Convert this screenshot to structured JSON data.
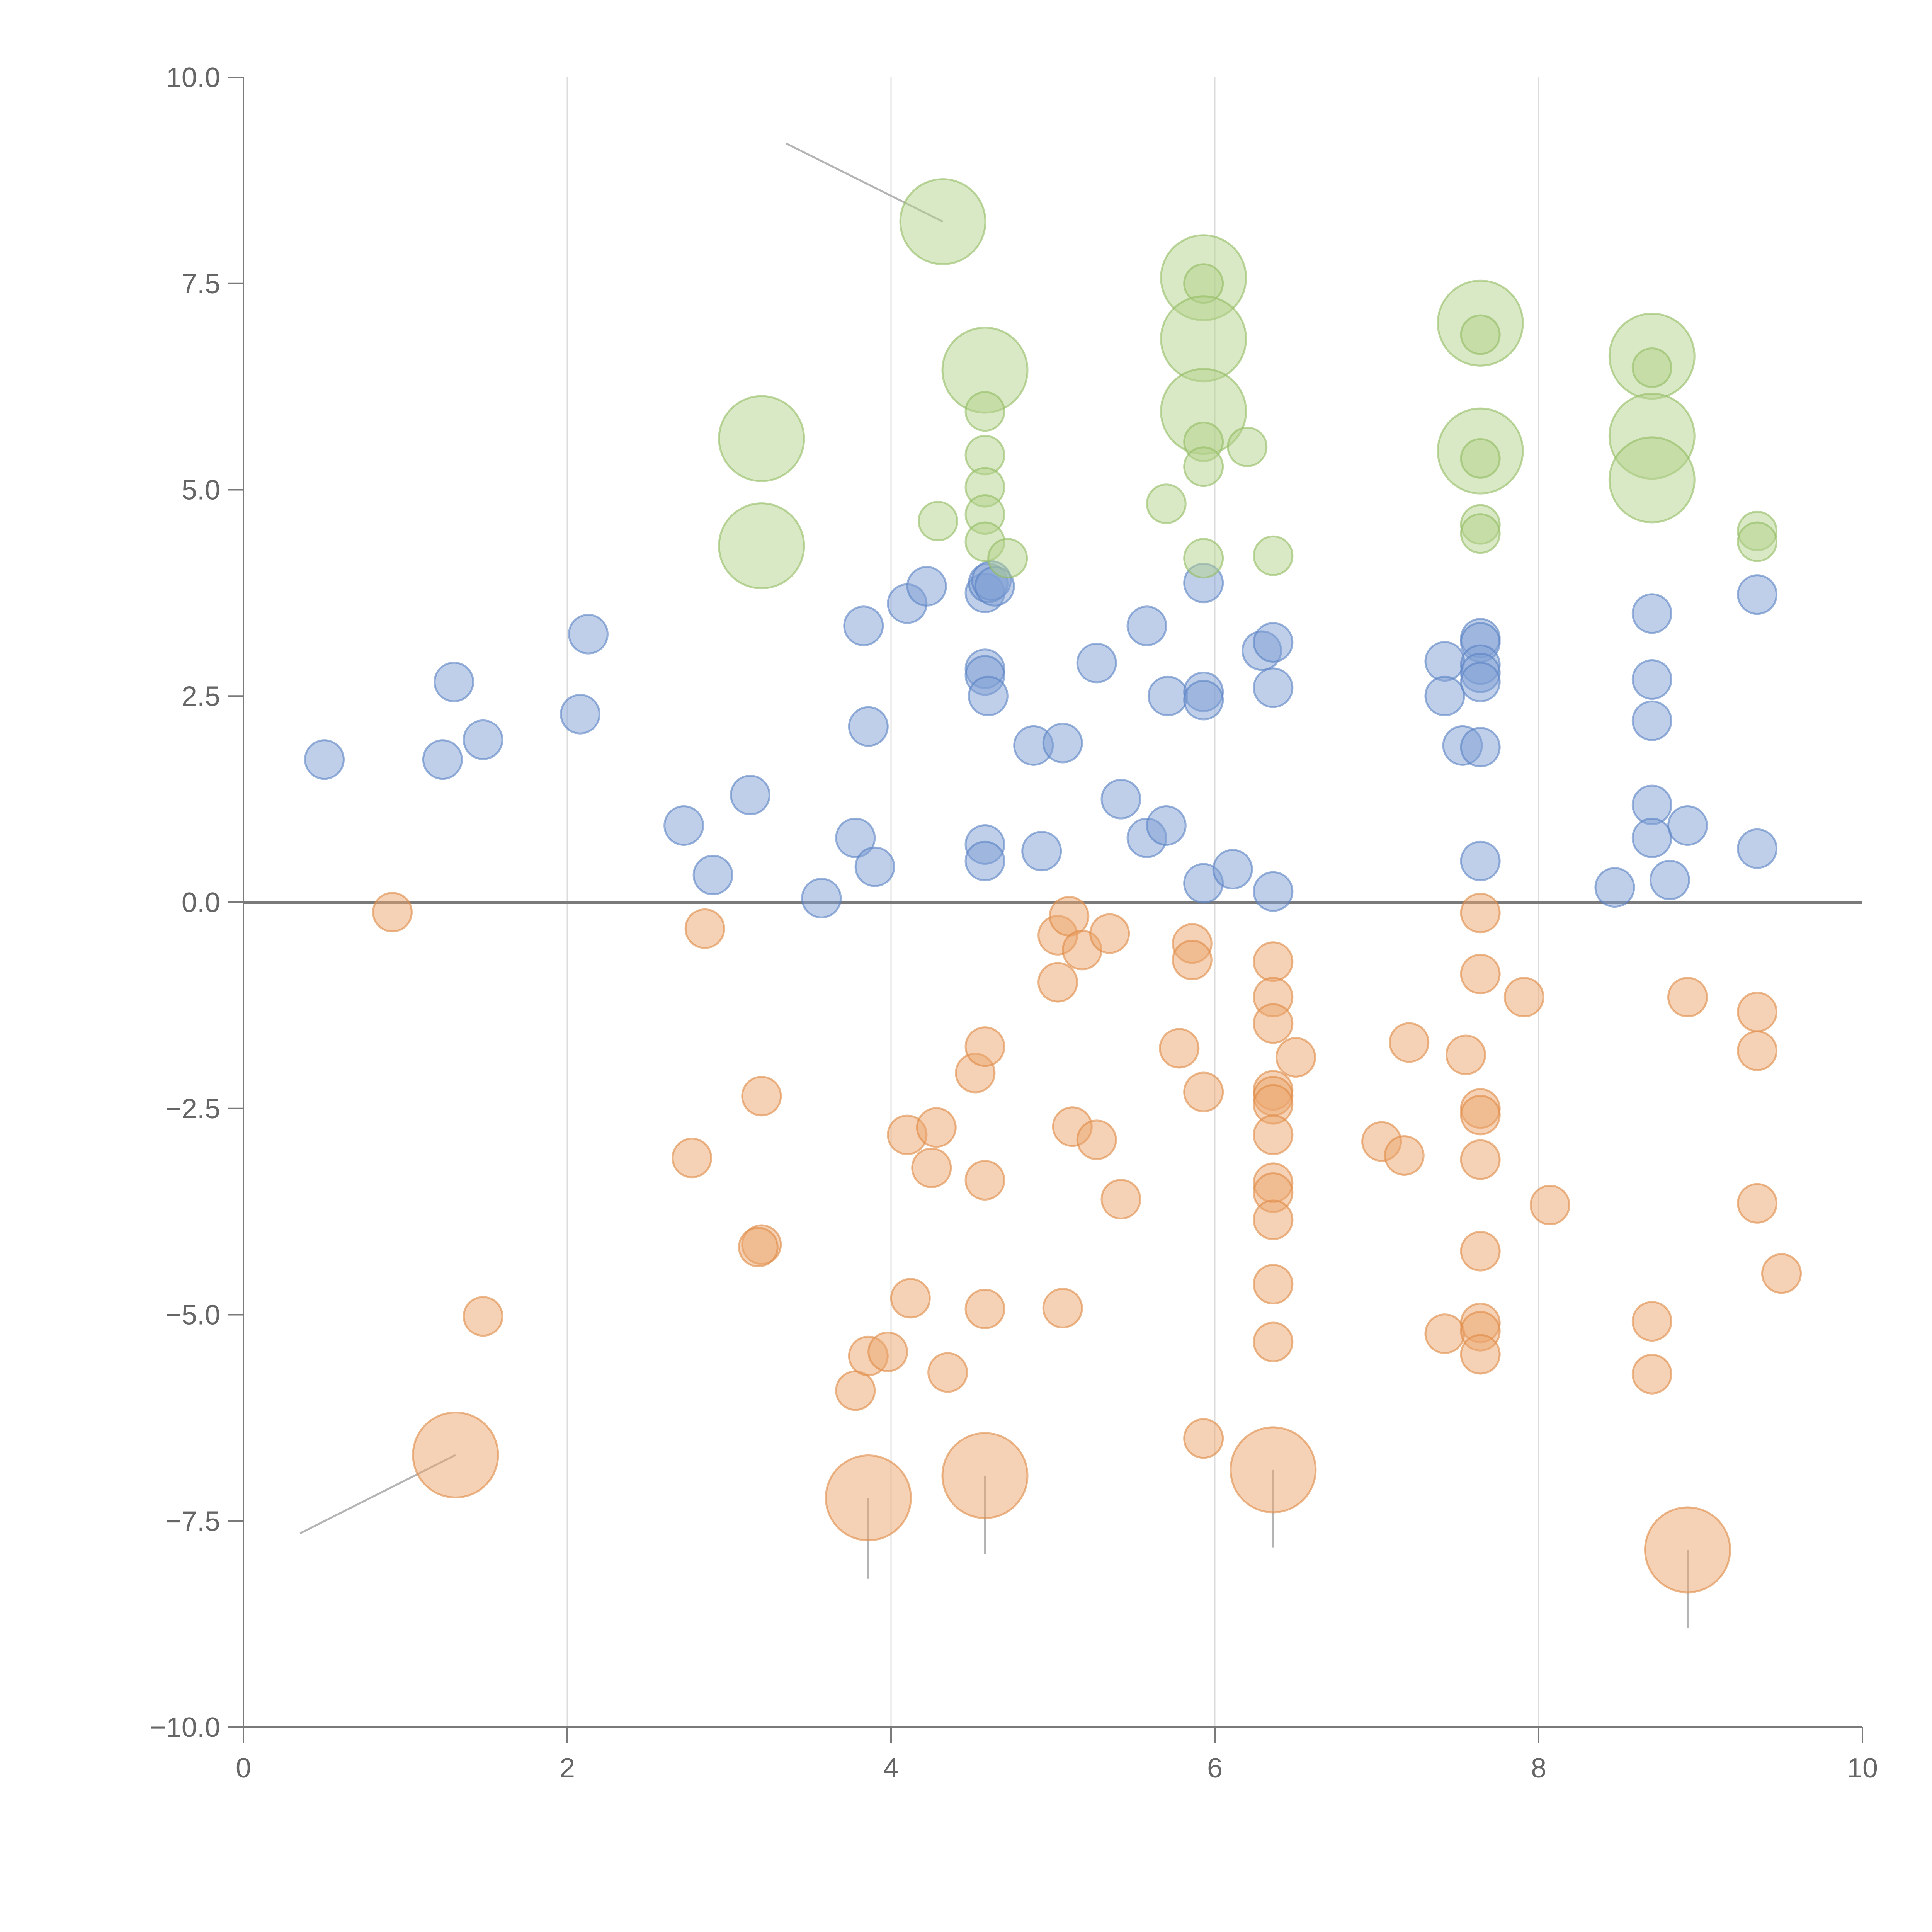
{
  "chart_data": {
    "type": "scatter",
    "title": "",
    "xlabel": "",
    "ylabel": "",
    "xlim": [
      0,
      10
    ],
    "ylim": [
      -10,
      10
    ],
    "x_ticks": [
      0,
      2,
      4,
      6,
      8,
      10
    ],
    "x_tick_labels": [
      "0",
      "2",
      "4",
      "6",
      "8",
      "10"
    ],
    "y_ticks": [
      10,
      7.5,
      5,
      2.5,
      0,
      -2.5,
      -5,
      -7.5,
      -10
    ],
    "y_tick_labels": [
      "10.0",
      "7.5",
      "5.0",
      "2.5",
      "0.0",
      "−2.5",
      "−5.0",
      "−7.5",
      "−10.0"
    ],
    "grid": "vertical",
    "reference_line_y": 0,
    "legend": "none",
    "colors": {
      "blue": "#7f9fd4",
      "blue_edge": "#5a82c4",
      "orange": "#eba56e",
      "orange_edge": "#e08a45",
      "green": "#b3d18c",
      "green_edge": "#93bc63",
      "leader": "#b4b4b4"
    },
    "series": [
      {
        "name": "blue",
        "color_key": "blue",
        "points": [
          [
            0.5,
            1.73
          ],
          [
            1.23,
            1.73
          ],
          [
            1.3,
            2.67
          ],
          [
            1.48,
            1.97
          ],
          [
            2.08,
            2.28
          ],
          [
            2.13,
            3.25
          ],
          [
            2.72,
            0.93
          ],
          [
            2.9,
            0.33
          ],
          [
            3.13,
            1.3
          ],
          [
            3.57,
            0.05
          ],
          [
            3.78,
            0.78
          ],
          [
            3.83,
            3.35
          ],
          [
            3.86,
            2.13
          ],
          [
            3.9,
            0.43
          ],
          [
            4.1,
            3.62
          ],
          [
            4.22,
            3.83
          ],
          [
            4.58,
            3.75
          ],
          [
            4.6,
            3.87
          ],
          [
            4.62,
            3.9
          ],
          [
            4.64,
            3.83
          ],
          [
            4.58,
            2.83
          ],
          [
            4.58,
            2.75
          ],
          [
            4.6,
            2.5
          ],
          [
            4.58,
            0.7
          ],
          [
            4.58,
            0.5
          ],
          [
            4.88,
            1.9
          ],
          [
            4.93,
            0.62
          ],
          [
            5.06,
            1.93
          ],
          [
            5.27,
            2.9
          ],
          [
            5.42,
            1.25
          ],
          [
            5.58,
            3.35
          ],
          [
            5.58,
            0.78
          ],
          [
            5.7,
            0.93
          ],
          [
            5.71,
            2.5
          ],
          [
            5.93,
            3.87
          ],
          [
            5.93,
            2.55
          ],
          [
            5.93,
            2.45
          ],
          [
            5.93,
            0.23
          ],
          [
            6.11,
            0.4
          ],
          [
            6.29,
            3.05
          ],
          [
            6.36,
            3.15
          ],
          [
            6.36,
            2.6
          ],
          [
            6.36,
            0.13
          ],
          [
            7.42,
            2.92
          ],
          [
            7.42,
            2.5
          ],
          [
            7.53,
            1.9
          ],
          [
            7.64,
            3.2
          ],
          [
            7.64,
            3.15
          ],
          [
            7.64,
            2.88
          ],
          [
            7.64,
            2.78
          ],
          [
            7.64,
            2.67
          ],
          [
            7.64,
            1.88
          ],
          [
            7.64,
            0.5
          ],
          [
            8.47,
            0.18
          ],
          [
            8.7,
            3.5
          ],
          [
            8.7,
            2.7
          ],
          [
            8.7,
            2.2
          ],
          [
            8.7,
            1.18
          ],
          [
            8.7,
            0.78
          ],
          [
            8.81,
            0.27
          ],
          [
            8.92,
            0.93
          ],
          [
            9.35,
            3.73
          ],
          [
            9.35,
            0.65
          ]
        ],
        "size": [
          1,
          1,
          1,
          1,
          1,
          1,
          1,
          1,
          1,
          1,
          1,
          1,
          1,
          1,
          1,
          1,
          1,
          1,
          1,
          1,
          1,
          1,
          1,
          1,
          1,
          1,
          1,
          1,
          1,
          1,
          1,
          1,
          1,
          1,
          1,
          1,
          1,
          1,
          1,
          1,
          1,
          1,
          1,
          1,
          1,
          1,
          1,
          1,
          1,
          1,
          1,
          1,
          1,
          1,
          1,
          1,
          1,
          1,
          1,
          1,
          1,
          1,
          1
        ]
      },
      {
        "name": "orange",
        "color_key": "orange",
        "points": [
          [
            0.92,
            -0.12
          ],
          [
            2.85,
            -0.32
          ],
          [
            3.2,
            -2.35
          ],
          [
            2.77,
            -3.1
          ],
          [
            3.2,
            -4.15
          ],
          [
            3.18,
            -4.18
          ],
          [
            1.48,
            -5.02
          ],
          [
            1.31,
            -6.7
          ],
          [
            3.78,
            -5.92
          ],
          [
            3.86,
            -5.5
          ],
          [
            3.98,
            -5.45
          ],
          [
            3.86,
            -7.22
          ],
          [
            4.1,
            -2.82
          ],
          [
            4.12,
            -4.8
          ],
          [
            4.25,
            -3.22
          ],
          [
            4.28,
            -2.73
          ],
          [
            4.35,
            -5.7
          ],
          [
            4.52,
            -2.07
          ],
          [
            4.58,
            -1.75
          ],
          [
            4.58,
            -3.37
          ],
          [
            4.58,
            -4.93
          ],
          [
            4.58,
            -6.95
          ],
          [
            5.03,
            -0.97
          ],
          [
            5.03,
            -0.4
          ],
          [
            5.06,
            -4.92
          ],
          [
            5.1,
            -0.17
          ],
          [
            5.12,
            -2.72
          ],
          [
            5.18,
            -0.58
          ],
          [
            5.27,
            -2.88
          ],
          [
            5.35,
            -0.38
          ],
          [
            5.42,
            -3.6
          ],
          [
            5.78,
            -1.77
          ],
          [
            5.86,
            -0.5
          ],
          [
            5.86,
            -0.7
          ],
          [
            5.93,
            -2.3
          ],
          [
            5.93,
            -6.5
          ],
          [
            6.36,
            -0.72
          ],
          [
            6.36,
            -1.15
          ],
          [
            6.36,
            -1.47
          ],
          [
            6.36,
            -2.28
          ],
          [
            6.36,
            -2.35
          ],
          [
            6.36,
            -2.45
          ],
          [
            6.36,
            -2.82
          ],
          [
            6.36,
            -3.4
          ],
          [
            6.36,
            -3.52
          ],
          [
            6.36,
            -3.85
          ],
          [
            6.36,
            -4.63
          ],
          [
            6.36,
            -5.33
          ],
          [
            6.36,
            -6.88
          ],
          [
            6.5,
            -1.88
          ],
          [
            7.03,
            -2.9
          ],
          [
            7.17,
            -3.07
          ],
          [
            7.2,
            -1.7
          ],
          [
            7.42,
            -5.23
          ],
          [
            7.55,
            -1.85
          ],
          [
            7.64,
            -0.13
          ],
          [
            7.64,
            -0.87
          ],
          [
            7.64,
            -2.5
          ],
          [
            7.64,
            -2.58
          ],
          [
            7.64,
            -3.12
          ],
          [
            7.64,
            -4.23
          ],
          [
            7.64,
            -5.1
          ],
          [
            7.64,
            -5.2
          ],
          [
            7.64,
            -5.48
          ],
          [
            7.91,
            -1.15
          ],
          [
            8.07,
            -3.67
          ],
          [
            8.7,
            -5.08
          ],
          [
            8.7,
            -5.72
          ],
          [
            8.92,
            -1.15
          ],
          [
            8.92,
            -7.85
          ],
          [
            9.35,
            -1.33
          ],
          [
            9.35,
            -1.8
          ],
          [
            9.35,
            -3.65
          ],
          [
            9.5,
            -4.5
          ]
        ],
        "size": [
          1,
          1,
          1,
          1,
          1,
          1,
          1,
          2.2,
          1,
          1,
          1,
          2.2,
          1,
          1,
          1,
          1,
          1,
          1,
          1,
          1,
          1,
          2.2,
          1,
          1,
          1,
          1,
          1,
          1,
          1,
          1,
          1,
          1,
          1,
          1,
          1,
          1,
          1,
          1,
          1,
          1,
          1,
          1,
          1,
          1,
          1,
          1,
          1,
          1,
          2.2,
          1,
          1,
          1,
          1,
          1,
          1,
          1,
          1,
          1,
          1,
          1,
          1,
          1,
          1,
          1,
          1,
          1,
          1,
          1,
          1,
          2.2,
          1,
          1,
          1,
          1
        ]
      },
      {
        "name": "green",
        "color_key": "green",
        "points": [
          [
            3.2,
            5.62
          ],
          [
            3.2,
            4.32
          ],
          [
            4.29,
            4.62
          ],
          [
            4.32,
            8.25
          ],
          [
            4.58,
            6.45
          ],
          [
            4.58,
            5.95
          ],
          [
            4.58,
            5.42
          ],
          [
            4.58,
            5.03
          ],
          [
            4.58,
            4.7
          ],
          [
            4.58,
            4.37
          ],
          [
            4.72,
            4.17
          ],
          [
            5.7,
            4.83
          ],
          [
            5.93,
            7.57
          ],
          [
            5.93,
            7.5
          ],
          [
            5.93,
            6.83
          ],
          [
            5.93,
            5.95
          ],
          [
            5.93,
            5.58
          ],
          [
            5.93,
            5.28
          ],
          [
            5.93,
            4.17
          ],
          [
            6.2,
            5.52
          ],
          [
            6.36,
            4.2
          ],
          [
            7.64,
            7.02
          ],
          [
            7.64,
            6.88
          ],
          [
            7.64,
            5.47
          ],
          [
            7.64,
            5.38
          ],
          [
            7.64,
            4.58
          ],
          [
            7.64,
            4.47
          ],
          [
            8.7,
            6.62
          ],
          [
            8.7,
            6.48
          ],
          [
            8.7,
            5.65
          ],
          [
            8.7,
            5.12
          ],
          [
            9.35,
            4.5
          ],
          [
            9.35,
            4.37
          ]
        ],
        "size": [
          2.2,
          2.2,
          1,
          2.2,
          2.2,
          1,
          1,
          1,
          1,
          1,
          1,
          1,
          2.2,
          1,
          2.2,
          2.2,
          1,
          1,
          1,
          1,
          1,
          2.2,
          1,
          2.2,
          1,
          1,
          1,
          2.2,
          1,
          2.2,
          2.2,
          1,
          1
        ]
      }
    ],
    "annotations": [
      {
        "series": "green",
        "point": [
          4.32,
          8.25
        ],
        "text_at": [
          3.35,
          9.2
        ]
      },
      {
        "series": "orange",
        "point": [
          1.31,
          -6.7
        ],
        "text_at": [
          0.35,
          -7.65
        ]
      },
      {
        "series": "orange",
        "point": [
          3.86,
          -7.22
        ],
        "text_at": [
          3.86,
          -8.2
        ]
      },
      {
        "series": "orange",
        "point": [
          4.58,
          -6.95
        ],
        "text_at": [
          4.58,
          -7.9
        ]
      },
      {
        "series": "orange",
        "point": [
          6.36,
          -6.88
        ],
        "text_at": [
          6.36,
          -7.82
        ]
      },
      {
        "series": "orange",
        "point": [
          8.92,
          -7.85
        ],
        "text_at": [
          8.92,
          -8.8
        ]
      }
    ]
  }
}
